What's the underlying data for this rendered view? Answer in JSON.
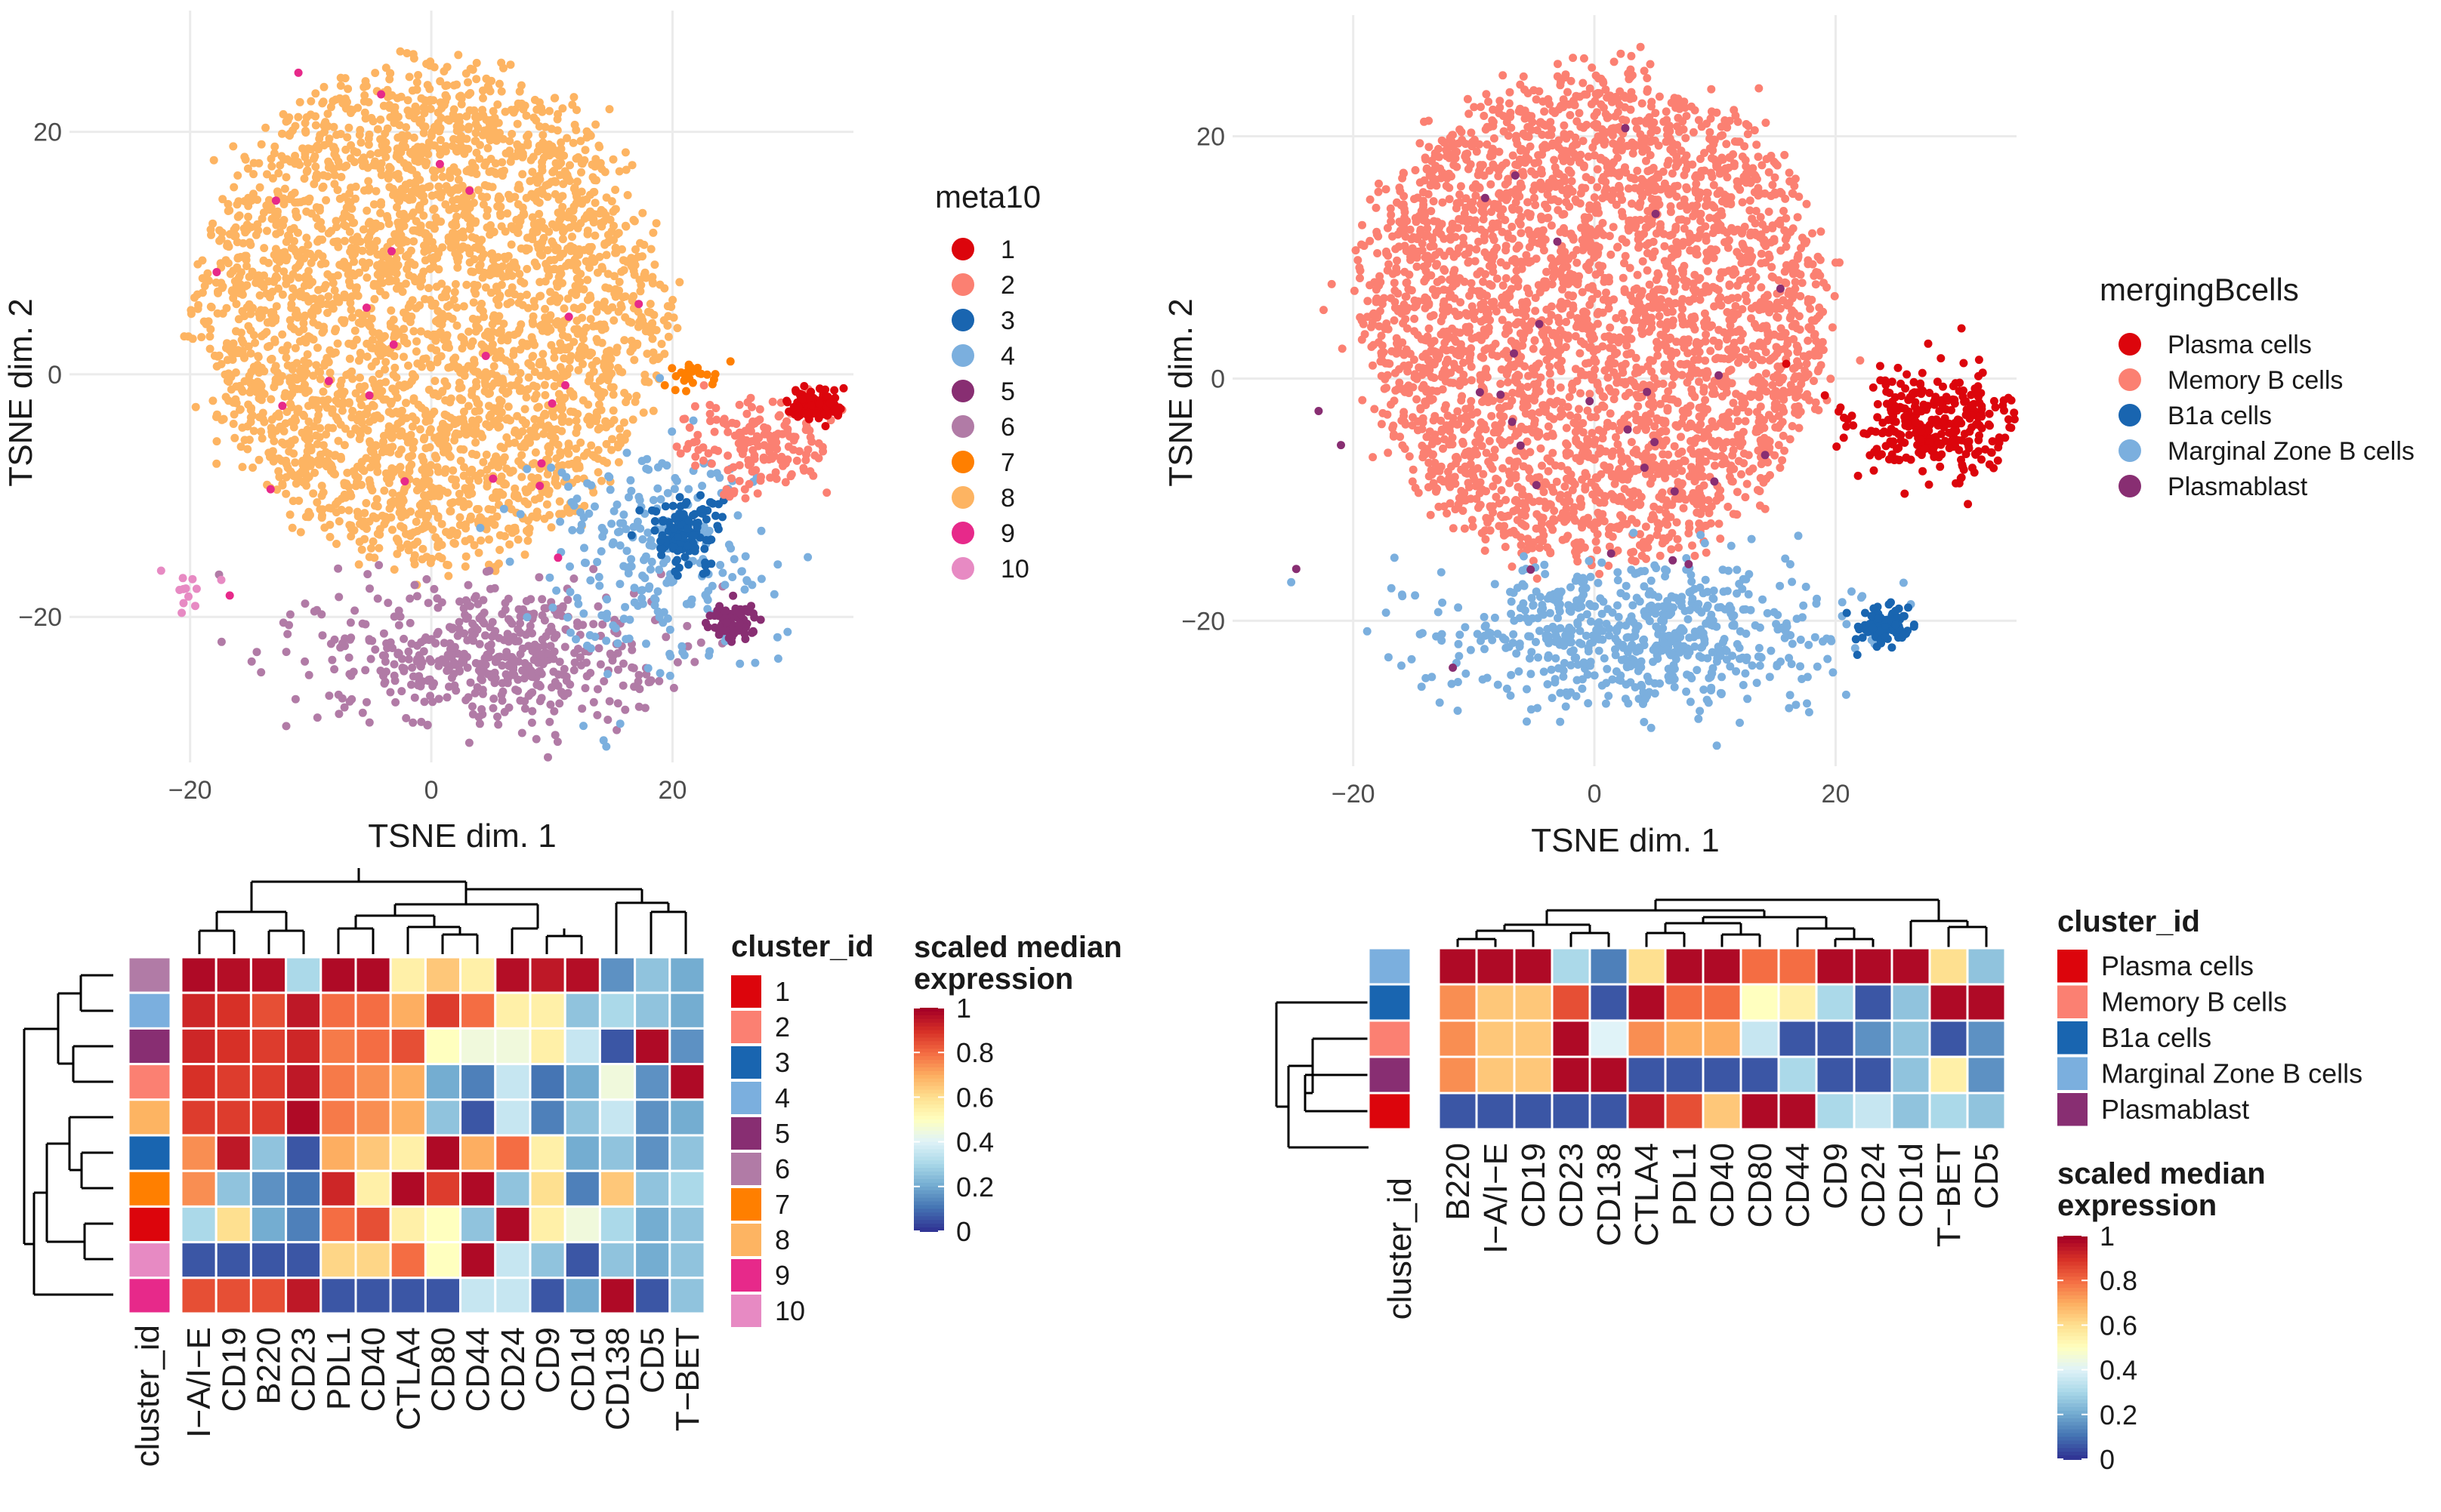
{
  "colors": {
    "tsne_clusters": [
      "#dc050c",
      "#fb8072",
      "#1965b0",
      "#7bafde",
      "#882e72",
      "#b17ba6",
      "#ff7f00",
      "#fdb462",
      "#e7298a",
      "#e78ac3"
    ],
    "phenotypes": [
      "#dc050c",
      "#fb8072",
      "#1965b0",
      "#7bafde",
      "#882e72"
    ],
    "expression_scale": [
      "#313695",
      "#4575b4",
      "#74add1",
      "#abd9e9",
      "#e0f3f8",
      "#ffffbf",
      "#fee090",
      "#fdae61",
      "#f46d43",
      "#d73027",
      "#a50026"
    ]
  },
  "chart_data": [
    {
      "type": "scatter",
      "panel": "tsne-meta10",
      "xlabel": "TSNE dim. 1",
      "ylabel": "TSNE dim. 2",
      "xlim": [
        -30,
        35
      ],
      "ylim": [
        -32,
        30
      ],
      "x_ticks": [
        -20,
        0,
        20
      ],
      "y_ticks": [
        -20,
        0,
        20
      ],
      "x_tick_labels": [
        "−20",
        "0",
        "20"
      ],
      "y_tick_labels": [
        "−20",
        "0",
        "20"
      ],
      "legend_title": "meta10",
      "legend": [
        "1",
        "2",
        "3",
        "4",
        "5",
        "6",
        "7",
        "8",
        "9",
        "10"
      ],
      "groups": [
        {
          "label": "8",
          "color_index": 7,
          "center": [
            0,
            5
          ],
          "spread": [
            12,
            10
          ],
          "count": 3200
        },
        {
          "label": "6",
          "color_index": 5,
          "center": [
            5,
            -23
          ],
          "spread": [
            7,
            3
          ],
          "count": 520
        },
        {
          "label": "4",
          "color_index": 3,
          "center": [
            18,
            -15
          ],
          "spread": [
            5,
            5
          ],
          "count": 260
        },
        {
          "label": "3",
          "color_index": 2,
          "center": [
            21,
            -13
          ],
          "spread": [
            1.5,
            1.5
          ],
          "count": 130
        },
        {
          "label": "2",
          "color_index": 1,
          "center": [
            27,
            -6
          ],
          "spread": [
            3,
            2
          ],
          "count": 170
        },
        {
          "label": "1",
          "color_index": 0,
          "center": [
            32,
            -2.5
          ],
          "spread": [
            1.2,
            0.8
          ],
          "count": 110
        },
        {
          "label": "7",
          "color_index": 6,
          "center": [
            22,
            0
          ],
          "spread": [
            1.2,
            0.5
          ],
          "count": 25
        },
        {
          "label": "5",
          "color_index": 4,
          "center": [
            25,
            -20.5
          ],
          "spread": [
            1.1,
            0.8
          ],
          "count": 80
        },
        {
          "label": "9",
          "color_index": 8,
          "center": [
            -5,
            3
          ],
          "spread": [
            12,
            12
          ],
          "count": 25
        },
        {
          "label": "10",
          "color_index": 9,
          "center": [
            -20,
            -18
          ],
          "spread": [
            1,
            1
          ],
          "count": 12
        }
      ]
    },
    {
      "type": "scatter",
      "panel": "tsne-merging",
      "xlabel": "TSNE dim. 1",
      "ylabel": "TSNE dim. 2",
      "xlim": [
        -30,
        35
      ],
      "ylim": [
        -32,
        30
      ],
      "x_ticks": [
        -20,
        0,
        20
      ],
      "y_ticks": [
        -20,
        0,
        20
      ],
      "x_tick_labels": [
        "−20",
        "0",
        "20"
      ],
      "y_tick_labels": [
        "−20",
        "0",
        "20"
      ],
      "legend_title": "mergingBcells",
      "legend": [
        "Plasma cells",
        "Memory B cells",
        "B1a cells",
        "Marginal Zone B cells",
        "Plasmablast"
      ],
      "groups": [
        {
          "label": "Memory B cells",
          "color_index": 1,
          "center": [
            0,
            5
          ],
          "spread": [
            12,
            10
          ],
          "count": 3400
        },
        {
          "label": "Marginal Zone B cells",
          "color_index": 3,
          "center": [
            4,
            -21
          ],
          "spread": [
            8,
            3
          ],
          "count": 650
        },
        {
          "label": "Plasma cells",
          "color_index": 0,
          "center": [
            28,
            -4
          ],
          "spread": [
            3.5,
            2.5
          ],
          "count": 320
        },
        {
          "label": "B1a cells",
          "color_index": 2,
          "center": [
            24,
            -20.5
          ],
          "spread": [
            1.2,
            0.8
          ],
          "count": 80
        },
        {
          "label": "Plasmablast",
          "color_index": 4,
          "center": [
            -5,
            2
          ],
          "spread": [
            12,
            12
          ],
          "count": 30
        }
      ]
    },
    {
      "type": "heatmap",
      "panel": "heatmap-meta10",
      "title": "scaled median expression",
      "annotation_title": "cluster_id",
      "columns": [
        "I−A/I−E",
        "CD19",
        "B220",
        "CD23",
        "PDL1",
        "CD40",
        "CTLA4",
        "CD80",
        "CD44",
        "CD24",
        "CD9",
        "CD1d",
        "CD138",
        "CD5",
        "T−BET"
      ],
      "row_clusters": [
        6,
        4,
        5,
        2,
        8,
        3,
        7,
        1,
        10,
        9
      ],
      "row_color_index": [
        5,
        3,
        4,
        1,
        7,
        2,
        6,
        0,
        9,
        8
      ],
      "cluster_legend": [
        "1",
        "2",
        "3",
        "4",
        "5",
        "6",
        "7",
        "8",
        "9",
        "10"
      ],
      "scale_ticks": [
        "0",
        "0.2",
        "0.4",
        "0.6",
        "0.8",
        "1"
      ],
      "values": [
        [
          0.98,
          0.97,
          0.97,
          0.3,
          0.98,
          0.98,
          0.55,
          0.65,
          0.55,
          0.97,
          0.95,
          0.97,
          0.15,
          0.25,
          0.2
        ],
        [
          0.92,
          0.9,
          0.85,
          0.95,
          0.8,
          0.8,
          0.7,
          0.88,
          0.8,
          0.55,
          0.55,
          0.25,
          0.3,
          0.25,
          0.2
        ],
        [
          0.92,
          0.9,
          0.88,
          0.92,
          0.78,
          0.8,
          0.85,
          0.5,
          0.45,
          0.45,
          0.55,
          0.35,
          0.05,
          0.98,
          0.15
        ],
        [
          0.9,
          0.88,
          0.88,
          0.95,
          0.78,
          0.75,
          0.7,
          0.2,
          0.12,
          0.35,
          0.1,
          0.2,
          0.45,
          0.15,
          0.98
        ],
        [
          0.88,
          0.88,
          0.88,
          0.98,
          0.78,
          0.75,
          0.7,
          0.25,
          0.05,
          0.35,
          0.12,
          0.25,
          0.35,
          0.15,
          0.2
        ],
        [
          0.75,
          0.95,
          0.25,
          0.05,
          0.7,
          0.65,
          0.55,
          0.98,
          0.7,
          0.8,
          0.55,
          0.2,
          0.25,
          0.15,
          0.25
        ],
        [
          0.75,
          0.25,
          0.15,
          0.1,
          0.92,
          0.55,
          0.98,
          0.88,
          0.98,
          0.25,
          0.6,
          0.12,
          0.65,
          0.25,
          0.3
        ],
        [
          0.3,
          0.6,
          0.2,
          0.12,
          0.8,
          0.85,
          0.55,
          0.5,
          0.25,
          0.98,
          0.55,
          0.45,
          0.3,
          0.2,
          0.25
        ],
        [
          0.05,
          0.05,
          0.05,
          0.05,
          0.62,
          0.62,
          0.8,
          0.5,
          0.98,
          0.35,
          0.25,
          0.05,
          0.25,
          0.2,
          0.25
        ],
        [
          0.85,
          0.85,
          0.85,
          0.95,
          0.05,
          0.05,
          0.05,
          0.05,
          0.35,
          0.35,
          0.05,
          0.2,
          0.98,
          0.05,
          0.25
        ]
      ]
    },
    {
      "type": "heatmap",
      "panel": "heatmap-merging",
      "title": "scaled median expression",
      "annotation_title": "cluster_id",
      "columns": [
        "B220",
        "I−A/I−E",
        "CD19",
        "CD23",
        "CD138",
        "CTLA4",
        "PDL1",
        "CD40",
        "CD80",
        "CD44",
        "CD9",
        "CD24",
        "CD1d",
        "T−BET",
        "CD5"
      ],
      "row_labels": [
        "Marginal Zone B cells",
        "B1a cells",
        "Memory B cells",
        "Plasmablast",
        "Plasma cells"
      ],
      "row_color_index": [
        3,
        2,
        1,
        4,
        0
      ],
      "cluster_legend": [
        "Plasma cells",
        "Memory B cells",
        "B1a cells",
        "Marginal Zone B cells",
        "Plasmablast"
      ],
      "scale_ticks": [
        "0",
        "0.2",
        "0.4",
        "0.6",
        "0.8",
        "1"
      ],
      "values": [
        [
          0.98,
          0.98,
          0.98,
          0.3,
          0.12,
          0.6,
          0.98,
          0.98,
          0.8,
          0.8,
          0.98,
          0.98,
          0.98,
          0.6,
          0.25
        ],
        [
          0.75,
          0.65,
          0.65,
          0.85,
          0.05,
          0.98,
          0.8,
          0.8,
          0.5,
          0.55,
          0.3,
          0.05,
          0.25,
          0.98,
          0.98
        ],
        [
          0.75,
          0.65,
          0.65,
          0.98,
          0.4,
          0.75,
          0.7,
          0.7,
          0.35,
          0.05,
          0.05,
          0.15,
          0.25,
          0.05,
          0.15
        ],
        [
          0.75,
          0.65,
          0.65,
          0.98,
          0.98,
          0.05,
          0.05,
          0.05,
          0.05,
          0.3,
          0.05,
          0.05,
          0.25,
          0.55,
          0.15
        ],
        [
          0.05,
          0.05,
          0.05,
          0.05,
          0.05,
          0.95,
          0.85,
          0.65,
          0.98,
          0.98,
          0.3,
          0.35,
          0.25,
          0.3,
          0.25
        ]
      ]
    }
  ]
}
